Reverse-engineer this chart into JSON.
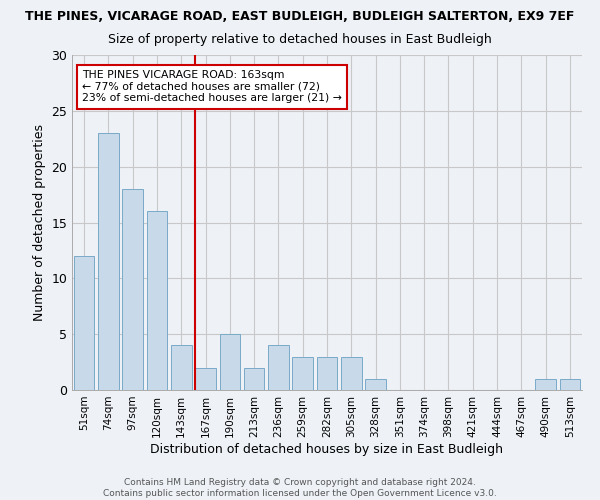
{
  "title1": "THE PINES, VICARAGE ROAD, EAST BUDLEIGH, BUDLEIGH SALTERTON, EX9 7EF",
  "title2": "Size of property relative to detached houses in East Budleigh",
  "xlabel": "Distribution of detached houses by size in East Budleigh",
  "ylabel": "Number of detached properties",
  "categories": [
    "51sqm",
    "74sqm",
    "97sqm",
    "120sqm",
    "143sqm",
    "167sqm",
    "190sqm",
    "213sqm",
    "236sqm",
    "259sqm",
    "282sqm",
    "305sqm",
    "328sqm",
    "351sqm",
    "374sqm",
    "398sqm",
    "421sqm",
    "444sqm",
    "467sqm",
    "490sqm",
    "513sqm"
  ],
  "values": [
    12,
    23,
    18,
    16,
    4,
    2,
    5,
    2,
    4,
    3,
    3,
    3,
    1,
    0,
    0,
    0,
    0,
    0,
    0,
    1,
    1
  ],
  "bar_color": "#c8d9ea",
  "bar_edge_color": "#7aaac8",
  "vline_color": "#cc0000",
  "annotation_box_edge_color": "#cc0000",
  "ylim": [
    0,
    30
  ],
  "yticks": [
    0,
    5,
    10,
    15,
    20,
    25,
    30
  ],
  "footer1": "Contains HM Land Registry data © Crown copyright and database right 2024.",
  "footer2": "Contains public sector information licensed under the Open Government Licence v3.0.",
  "bg_color": "#eef2f7",
  "grid_color": "#c8c8c8",
  "ref_line_label": "THE PINES VICARAGE ROAD: 163sqm",
  "annotation_line2": "← 77% of detached houses are smaller (72)",
  "annotation_line3": "23% of semi-detached houses are larger (21) →"
}
